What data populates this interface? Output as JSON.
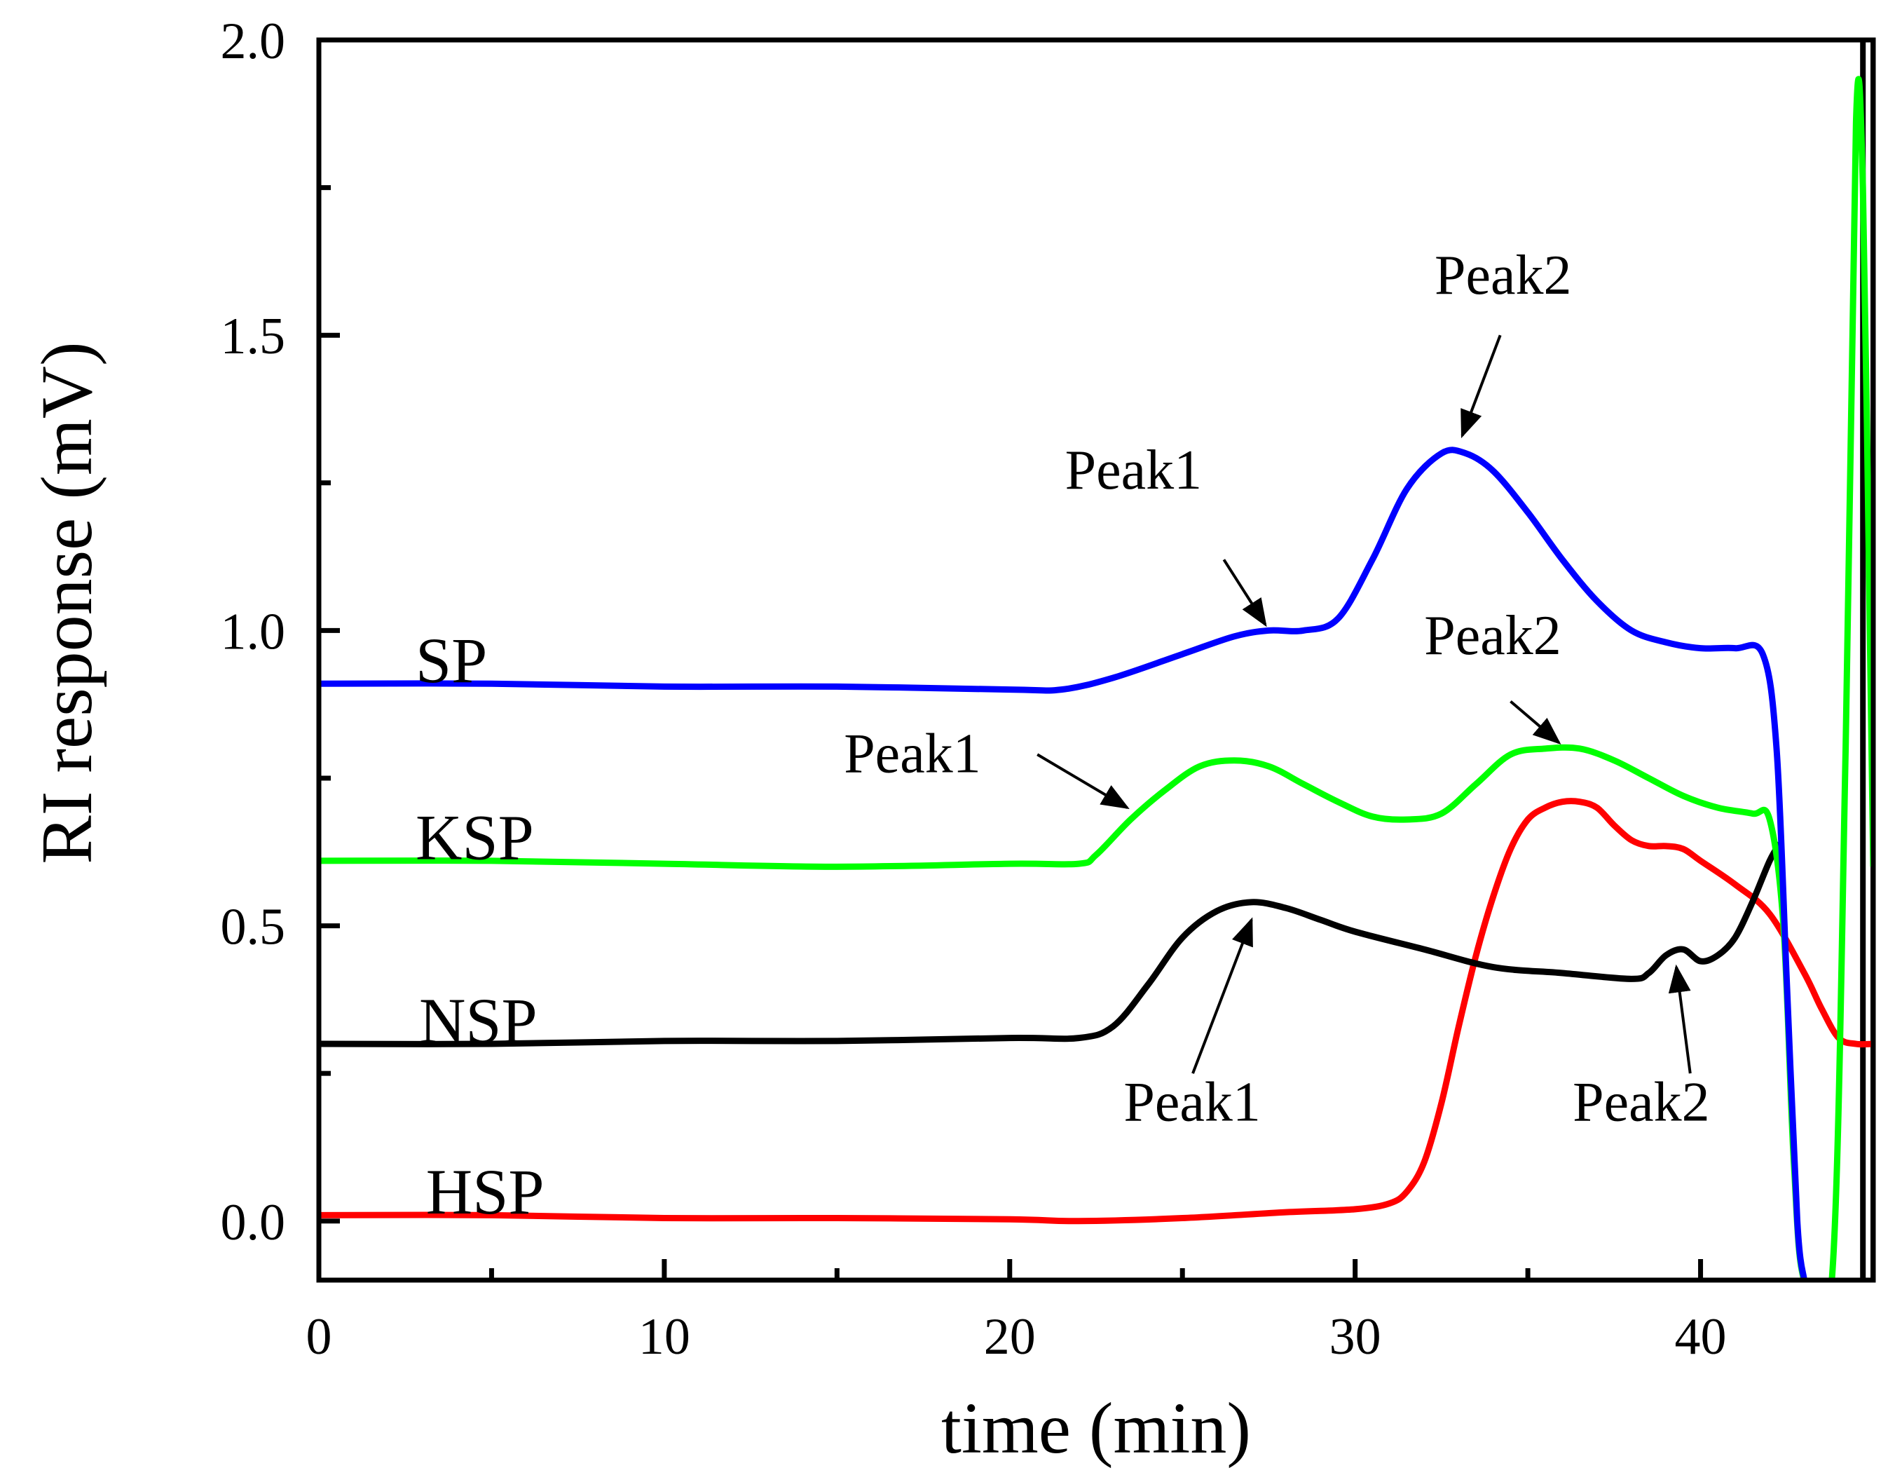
{
  "chart_data": {
    "type": "line",
    "title": "",
    "xlabel": "time (min)",
    "ylabel": "RI response (mV)",
    "xlim": [
      0,
      45
    ],
    "ylim": [
      -0.1,
      2.0
    ],
    "xticks": [
      "0",
      "10",
      "20",
      "30",
      "40"
    ],
    "yticks": [
      "0.0",
      "0.5",
      "1.0",
      "1.5",
      "2.0"
    ],
    "grid": false,
    "legend": "none",
    "series": [
      {
        "name": "SP",
        "color": "#0000ff",
        "x": [
          0,
          5,
          10,
          15,
          20,
          21.5,
          23,
          25,
          26.5,
          27.5,
          28.5,
          29.5,
          30.5,
          31.5,
          32.5,
          33.2,
          34,
          35,
          36,
          37,
          38,
          39,
          40,
          41,
          41.8,
          42.2,
          42.5,
          42.8,
          43.0
        ],
        "y": [
          0.91,
          0.91,
          0.905,
          0.905,
          0.9,
          0.9,
          0.92,
          0.96,
          0.99,
          1.0,
          1.0,
          1.02,
          1.12,
          1.24,
          1.3,
          1.3,
          1.27,
          1.2,
          1.12,
          1.05,
          1.0,
          0.98,
          0.97,
          0.97,
          0.96,
          0.8,
          0.4,
          0.0,
          -0.1
        ]
      },
      {
        "name": "KSP",
        "color": "#00ff00",
        "x": [
          0,
          5,
          10,
          15,
          20,
          22,
          22.5,
          23.5,
          24.5,
          25.5,
          26.5,
          27.5,
          28.5,
          29.5,
          30.5,
          31.5,
          32.5,
          33.5,
          34.5,
          35.5,
          36.5,
          37.5,
          38.5,
          39.5,
          40.5,
          41.5,
          42.0,
          42.4,
          42.7,
          43.0,
          43.8,
          44.2,
          44.5,
          44.7,
          44.9,
          45.0
        ],
        "y": [
          0.61,
          0.61,
          0.605,
          0.6,
          0.605,
          0.605,
          0.62,
          0.68,
          0.73,
          0.77,
          0.78,
          0.77,
          0.74,
          0.71,
          0.685,
          0.68,
          0.69,
          0.74,
          0.79,
          0.8,
          0.8,
          0.78,
          0.75,
          0.72,
          0.7,
          0.69,
          0.68,
          0.5,
          0.1,
          -0.1,
          -0.1,
          0.8,
          1.86,
          1.75,
          1.0,
          0.6
        ]
      },
      {
        "name": "NSP",
        "color": "#000000",
        "x": [
          0,
          5,
          10,
          15,
          20,
          22,
          23,
          24,
          25,
          26,
          27,
          28,
          29,
          30,
          32,
          34,
          36,
          38,
          38.5,
          39,
          39.5,
          40,
          40.5,
          41,
          41.5,
          42,
          42.3
        ],
        "y": [
          0.3,
          0.3,
          0.305,
          0.305,
          0.31,
          0.31,
          0.33,
          0.4,
          0.48,
          0.525,
          0.54,
          0.53,
          0.51,
          0.49,
          0.46,
          0.43,
          0.42,
          0.41,
          0.42,
          0.45,
          0.46,
          0.44,
          0.45,
          0.48,
          0.54,
          0.61,
          0.64
        ]
      },
      {
        "name": "HSP",
        "color": "#ff0000",
        "x": [
          0,
          5,
          10,
          15,
          20,
          22,
          25,
          28,
          30,
          31,
          31.5,
          32,
          32.5,
          33,
          33.5,
          34,
          34.5,
          35,
          35.5,
          36,
          36.5,
          37,
          37.5,
          38,
          38.5,
          39,
          39.5,
          40,
          41,
          42,
          43,
          43.5,
          44,
          44.5,
          45
        ],
        "y": [
          0.01,
          0.01,
          0.005,
          0.005,
          0.003,
          0.0,
          0.005,
          0.015,
          0.02,
          0.03,
          0.05,
          0.1,
          0.2,
          0.33,
          0.45,
          0.55,
          0.63,
          0.68,
          0.7,
          0.71,
          0.71,
          0.7,
          0.67,
          0.645,
          0.635,
          0.635,
          0.63,
          0.61,
          0.57,
          0.52,
          0.42,
          0.36,
          0.31,
          0.3,
          0.3
        ]
      }
    ],
    "series_labels": [
      "SP",
      "KSP",
      "NSP",
      "HSP"
    ],
    "annotations": [
      {
        "text": "Peak1",
        "series": "SP",
        "target": [
          27.5,
          1.0
        ]
      },
      {
        "text": "Peak2",
        "series": "SP",
        "target": [
          33.2,
          1.3
        ]
      },
      {
        "text": "Peak1",
        "series": "KSP",
        "target": [
          23.5,
          0.68
        ]
      },
      {
        "text": "Peak2",
        "series": "KSP",
        "target": [
          36.0,
          0.8
        ]
      },
      {
        "text": "Peak1",
        "series": "NSP",
        "target": [
          27.0,
          0.54
        ]
      },
      {
        "text": "Peak2",
        "series": "NSP",
        "target": [
          39.3,
          0.46
        ]
      }
    ]
  }
}
